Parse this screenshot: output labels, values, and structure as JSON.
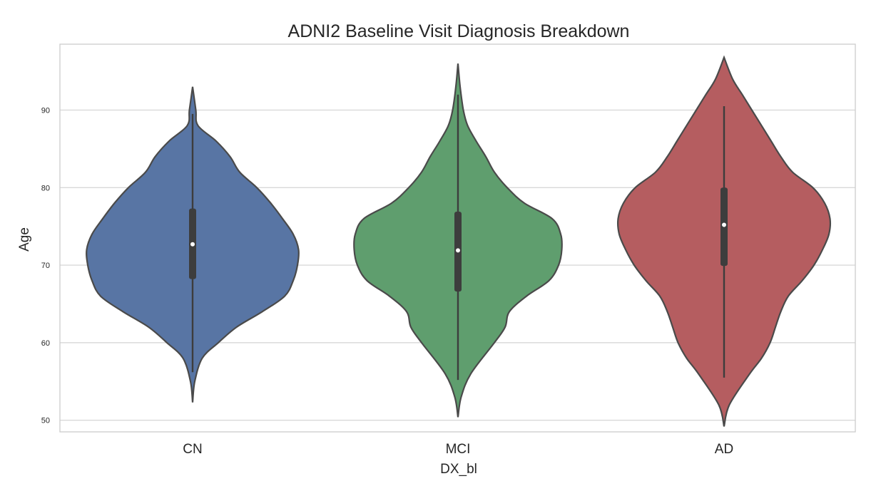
{
  "chart_data": {
    "type": "violin",
    "title": "ADNI2 Baseline Visit Diagnosis Breakdown",
    "xlabel": "DX_bl",
    "ylabel": "Age",
    "ylim": [
      48.5,
      98.5
    ],
    "yticks": [
      50,
      60,
      70,
      80,
      90
    ],
    "ytick_labels": [
      "50",
      "60",
      "70",
      "80",
      "90"
    ],
    "grid": true,
    "categories": [
      "CN",
      "MCI",
      "AD"
    ],
    "colors": [
      "#5875a4",
      "#5f9e6e",
      "#b55d60"
    ],
    "violins": [
      {
        "category": "CN",
        "median": 72.7,
        "q1": 68.2,
        "q3": 77.3,
        "whisker_low": 56.2,
        "whisker_high": 89.5,
        "kde_y": [
          52.3,
          55,
          58,
          60,
          62,
          64,
          66,
          68,
          70,
          72,
          74,
          76,
          78,
          80,
          82,
          84,
          86,
          88,
          90,
          93
        ],
        "kde_w": [
          0,
          0.02,
          0.09,
          0.24,
          0.41,
          0.65,
          0.86,
          0.94,
          0.98,
          0.99,
          0.94,
          0.84,
          0.73,
          0.6,
          0.44,
          0.35,
          0.22,
          0.05,
          0.03,
          0
        ]
      },
      {
        "category": "MCI",
        "median": 71.9,
        "q1": 66.6,
        "q3": 76.9,
        "whisker_low": 55.2,
        "whisker_high": 92.0,
        "kde_y": [
          50.4,
          53,
          56,
          60,
          62,
          64,
          66,
          68,
          70,
          72,
          74,
          76,
          78,
          80,
          82,
          84,
          86,
          88,
          90,
          93,
          96
        ],
        "kde_w": [
          0,
          0.03,
          0.12,
          0.34,
          0.44,
          0.48,
          0.64,
          0.85,
          0.94,
          0.97,
          0.96,
          0.88,
          0.62,
          0.46,
          0.34,
          0.26,
          0.17,
          0.09,
          0.05,
          0.02,
          0
        ]
      },
      {
        "category": "AD",
        "median": 75.2,
        "q1": 69.9,
        "q3": 80.0,
        "whisker_low": 55.5,
        "whisker_high": 90.5,
        "kde_y": [
          49.2,
          52,
          56,
          58,
          60,
          62,
          64,
          66,
          68,
          70,
          72,
          74,
          76,
          78,
          80,
          82,
          84,
          86,
          88,
          90,
          92,
          94,
          96.8
        ],
        "kde_w": [
          0,
          0.05,
          0.24,
          0.35,
          0.43,
          0.48,
          0.53,
          0.6,
          0.73,
          0.84,
          0.92,
          0.98,
          0.99,
          0.94,
          0.83,
          0.64,
          0.53,
          0.44,
          0.35,
          0.26,
          0.17,
          0.08,
          0
        ]
      }
    ]
  }
}
